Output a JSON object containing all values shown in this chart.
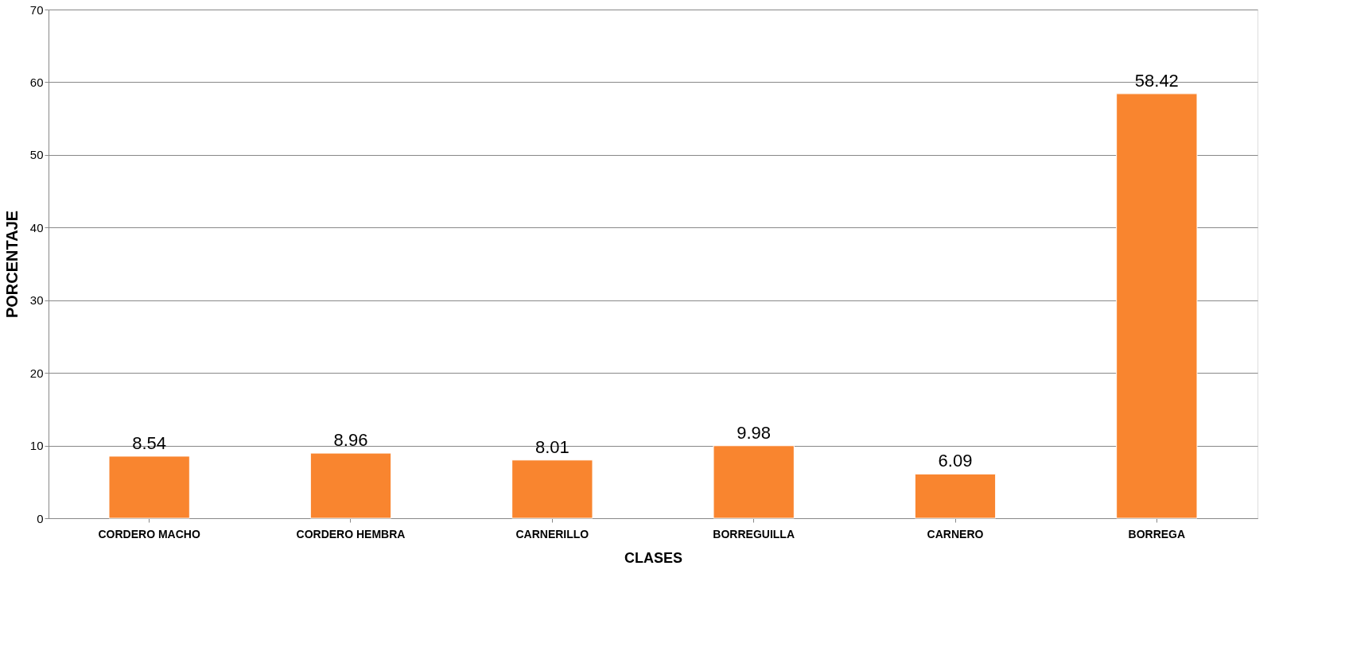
{
  "chart_data": {
    "type": "bar",
    "xlabel": "CLASES",
    "ylabel": "PORCENTAJE",
    "categories": [
      "CORDERO  MACHO",
      "CORDERO HEMBRA",
      "CARNERILLO",
      "BORREGUILLA",
      "CARNERO",
      "BORREGA"
    ],
    "values": [
      8.54,
      8.96,
      8.01,
      9.98,
      6.09,
      58.42
    ],
    "color": "#f9852f",
    "ylim": [
      0,
      70
    ],
    "yticks": [
      0,
      10,
      20,
      30,
      40,
      50,
      60,
      70
    ],
    "grid": "y",
    "data_labels": true
  }
}
